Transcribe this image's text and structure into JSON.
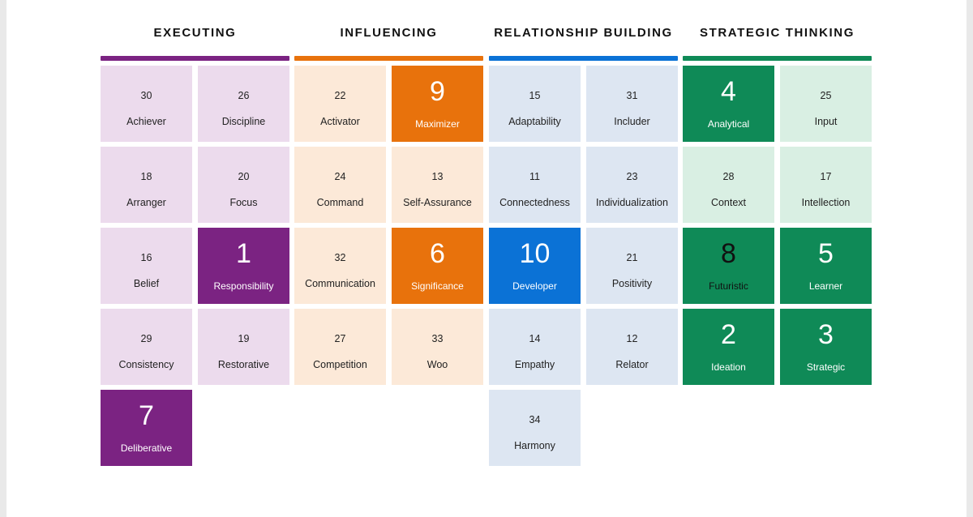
{
  "domains": [
    {
      "title": "EXECUTING",
      "color": "#7b2382",
      "light": "#ecdbed",
      "strengths": [
        {
          "rank": "30",
          "name": "Achiever",
          "top": false
        },
        {
          "rank": "26",
          "name": "Discipline",
          "top": false
        },
        {
          "rank": "18",
          "name": "Arranger",
          "top": false
        },
        {
          "rank": "20",
          "name": "Focus",
          "top": false
        },
        {
          "rank": "16",
          "name": "Belief",
          "top": false
        },
        {
          "rank": "1",
          "name": "Responsibility",
          "top": true
        },
        {
          "rank": "29",
          "name": "Consistency",
          "top": false
        },
        {
          "rank": "19",
          "name": "Restorative",
          "top": false
        },
        {
          "rank": "7",
          "name": "Deliberative",
          "top": true
        }
      ]
    },
    {
      "title": "INFLUENCING",
      "color": "#e8720c",
      "light": "#fce9d8",
      "strengths": [
        {
          "rank": "22",
          "name": "Activator",
          "top": false
        },
        {
          "rank": "9",
          "name": "Maximizer",
          "top": true
        },
        {
          "rank": "24",
          "name": "Command",
          "top": false
        },
        {
          "rank": "13",
          "name": "Self-Assurance",
          "top": false
        },
        {
          "rank": "32",
          "name": "Communication",
          "top": false
        },
        {
          "rank": "6",
          "name": "Significance",
          "top": true
        },
        {
          "rank": "27",
          "name": "Competition",
          "top": false
        },
        {
          "rank": "33",
          "name": "Woo",
          "top": false
        }
      ]
    },
    {
      "title": "RELATIONSHIP BUILDING",
      "color": "#0b72d6",
      "light": "#dde6f2",
      "strengths": [
        {
          "rank": "15",
          "name": "Adaptability",
          "top": false
        },
        {
          "rank": "31",
          "name": "Includer",
          "top": false
        },
        {
          "rank": "11",
          "name": "Connectedness",
          "top": false
        },
        {
          "rank": "23",
          "name": "Individualization",
          "top": false
        },
        {
          "rank": "10",
          "name": "Developer",
          "top": true
        },
        {
          "rank": "21",
          "name": "Positivity",
          "top": false
        },
        {
          "rank": "14",
          "name": "Empathy",
          "top": false
        },
        {
          "rank": "12",
          "name": "Relator",
          "top": false
        },
        {
          "rank": "34",
          "name": "Harmony",
          "top": false
        }
      ]
    },
    {
      "title": "STRATEGIC THINKING",
      "color": "#0f8a57",
      "light": "#d9efe3",
      "strengths": [
        {
          "rank": "4",
          "name": "Analytical",
          "top": true
        },
        {
          "rank": "25",
          "name": "Input",
          "top": false
        },
        {
          "rank": "28",
          "name": "Context",
          "top": false
        },
        {
          "rank": "17",
          "name": "Intellection",
          "top": false
        },
        {
          "rank": "8",
          "name": "Futuristic",
          "top": true,
          "dark": true
        },
        {
          "rank": "5",
          "name": "Learner",
          "top": true
        },
        {
          "rank": "2",
          "name": "Ideation",
          "top": true
        },
        {
          "rank": "3",
          "name": "Strategic",
          "top": true
        }
      ]
    }
  ]
}
